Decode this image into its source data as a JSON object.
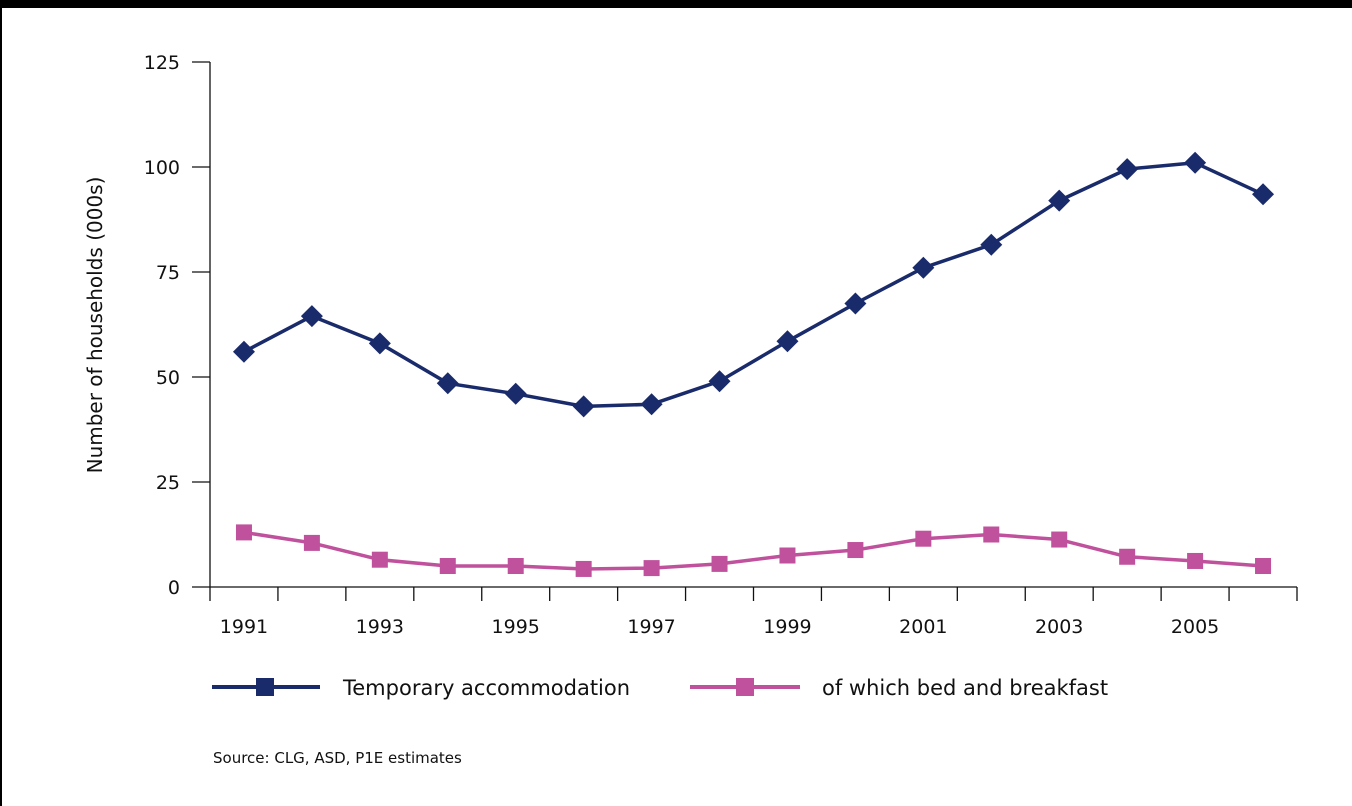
{
  "chart_data": {
    "type": "line",
    "title": "",
    "xlabel": "",
    "ylabel": "Number of households (000s)",
    "ylim": [
      0,
      125
    ],
    "yticks": [
      0,
      25,
      50,
      75,
      100,
      125
    ],
    "xlim": [
      1990.5,
      2006.5
    ],
    "xticks": [
      1991,
      1993,
      1995,
      1997,
      1999,
      2001,
      2003,
      2005
    ],
    "x": [
      1991,
      1992,
      1993,
      1994,
      1995,
      1996,
      1997,
      1998,
      1999,
      2000,
      2001,
      2002,
      2003,
      2004,
      2005,
      2006
    ],
    "series": [
      {
        "name": "Temporary accommodation",
        "color": "#1a2b6b",
        "marker": "diamond",
        "values": [
          56,
          64.5,
          58,
          48.5,
          46,
          43,
          43.5,
          49,
          58.5,
          67.5,
          76,
          81.5,
          92,
          99.5,
          101,
          93.5
        ]
      },
      {
        "name": "of which bed and breakfast",
        "color": "#c0519c",
        "marker": "square",
        "values": [
          13,
          10.5,
          6.5,
          5,
          5,
          4.3,
          4.5,
          5.5,
          7.5,
          8.8,
          11.5,
          12.5,
          11.3,
          7.2,
          6.2,
          5
        ]
      }
    ],
    "grid": false,
    "legend_position": "bottom"
  },
  "source_note": "Source: CLG, ASD, P1E estimates"
}
